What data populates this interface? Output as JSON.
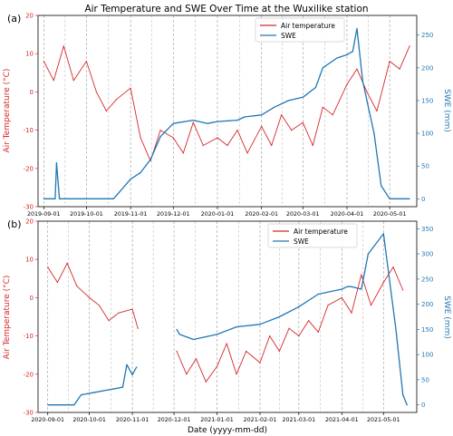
{
  "title": "Air Temperature and SWE Over Time at the Wuxilike station",
  "xlabel": "Date (yyyy-mm-dd)",
  "colors": {
    "air": "#d62728",
    "swe": "#1f77b4"
  },
  "chart_data": [
    {
      "type": "line",
      "panel_label": "(a)",
      "ylabel_left": "Air Temperature (°C)",
      "ylabel_right": "SWE (mm)",
      "legend": [
        "Air temperature",
        "SWE"
      ],
      "legend_loc": "top-center",
      "grid": "vertical dashed lines",
      "x_range": [
        "2019-08-28",
        "2020-05-20"
      ],
      "x_ticks": [
        "2019-09-01",
        "2019-10-01",
        "2019-11-01",
        "2019-12-01",
        "2020-01-01",
        "2020-02-01",
        "2020-03-01",
        "2020-04-01",
        "2020-05-01"
      ],
      "ylim_left": [
        -30,
        20
      ],
      "yticks_left": [
        -30,
        -20,
        -10,
        0,
        10,
        20
      ],
      "ylim_right": [
        -12,
        280
      ],
      "yticks_right": [
        0,
        50,
        100,
        150,
        200,
        250
      ],
      "series": [
        {
          "name": "Air temperature",
          "axis": "left",
          "dates": [
            "2019-09-01",
            "2019-09-08",
            "2019-09-15",
            "2019-09-22",
            "2019-10-01",
            "2019-10-08",
            "2019-10-15",
            "2019-10-22",
            "2019-11-01",
            "2019-11-08",
            "2019-11-15",
            "2019-11-22",
            "2019-12-01",
            "2019-12-08",
            "2019-12-15",
            "2019-12-22",
            "2020-01-01",
            "2020-01-08",
            "2020-01-15",
            "2020-01-22",
            "2020-02-01",
            "2020-02-08",
            "2020-02-15",
            "2020-02-22",
            "2020-03-01",
            "2020-03-08",
            "2020-03-15",
            "2020-03-22",
            "2020-04-01",
            "2020-04-08",
            "2020-04-15",
            "2020-04-22",
            "2020-05-01",
            "2020-05-08",
            "2020-05-15"
          ],
          "values": [
            8,
            3,
            12,
            3,
            8,
            0,
            -5,
            -2,
            1,
            -12,
            -18,
            -10,
            -12,
            -16,
            -8,
            -14,
            -12,
            -14,
            -10,
            -16,
            -9,
            -14,
            -6,
            -10,
            -8,
            -14,
            -4,
            -6,
            2,
            6,
            0,
            -5,
            8,
            6,
            12
          ]
        },
        {
          "name": "SWE",
          "axis": "right",
          "dates": [
            "2019-09-01",
            "2019-09-09",
            "2019-09-10",
            "2019-09-12",
            "2019-10-01",
            "2019-10-20",
            "2019-11-01",
            "2019-11-08",
            "2019-11-15",
            "2019-11-22",
            "2019-12-01",
            "2019-12-15",
            "2019-12-25",
            "2020-01-01",
            "2020-01-15",
            "2020-01-20",
            "2020-02-01",
            "2020-02-10",
            "2020-02-20",
            "2020-03-01",
            "2020-03-10",
            "2020-03-15",
            "2020-03-25",
            "2020-04-01",
            "2020-04-05",
            "2020-04-08",
            "2020-04-12",
            "2020-04-15",
            "2020-04-20",
            "2020-04-25",
            "2020-05-01",
            "2020-05-10",
            "2020-05-15"
          ],
          "values": [
            0,
            0,
            55,
            0,
            0,
            0,
            30,
            40,
            60,
            95,
            115,
            120,
            115,
            118,
            120,
            125,
            128,
            140,
            150,
            155,
            170,
            200,
            215,
            220,
            225,
            260,
            180,
            150,
            100,
            20,
            0,
            0,
            0
          ]
        }
      ]
    },
    {
      "type": "line",
      "panel_label": "(b)",
      "ylabel_left": "Air Temperature (°C)",
      "ylabel_right": "SWE (mm)",
      "legend": [
        "Air temperature",
        "SWE"
      ],
      "legend_loc": "top-center",
      "grid": "vertical dashed lines",
      "x_range": [
        "2020-08-25",
        "2021-05-25"
      ],
      "x_ticks": [
        "2020-09-01",
        "2020-10-01",
        "2020-11-01",
        "2020-12-01",
        "2021-01-01",
        "2021-02-01",
        "2021-03-01",
        "2021-04-01",
        "2021-05-01"
      ],
      "ylim_left": [
        -30,
        20
      ],
      "yticks_left": [
        -30,
        -20,
        -10,
        0,
        10,
        20
      ],
      "ylim_right": [
        -15,
        365
      ],
      "yticks_right": [
        0,
        50,
        100,
        150,
        200,
        250,
        300,
        350
      ],
      "series": [
        {
          "name": "Air temperature",
          "axis": "left",
          "dates": [
            "2020-09-01",
            "2020-09-08",
            "2020-09-15",
            "2020-09-22",
            "2020-10-01",
            "2020-10-08",
            "2020-10-15",
            "2020-10-22",
            "2020-11-01",
            "2020-11-05",
            "2020-12-03",
            "2020-12-10",
            "2020-12-17",
            "2020-12-24",
            "2021-01-01",
            "2021-01-08",
            "2021-01-15",
            "2021-01-22",
            "2021-02-01",
            "2021-02-08",
            "2021-02-15",
            "2021-02-22",
            "2021-03-01",
            "2021-03-08",
            "2021-03-15",
            "2021-03-22",
            "2021-04-01",
            "2021-04-08",
            "2021-04-15",
            "2021-04-22",
            "2021-05-01",
            "2021-05-08",
            "2021-05-15"
          ],
          "values": [
            8,
            4,
            9,
            3,
            0,
            -2,
            -6,
            -4,
            -3,
            -8,
            -14,
            -20,
            -16,
            -22,
            -18,
            -12,
            -20,
            -14,
            -17,
            -10,
            -14,
            -8,
            -10,
            -6,
            -9,
            -2,
            0,
            -4,
            6,
            -2,
            4,
            8,
            2
          ]
        },
        {
          "name": "SWE",
          "axis": "right",
          "dates": [
            "2020-09-01",
            "2020-09-20",
            "2020-09-25",
            "2020-10-05",
            "2020-10-15",
            "2020-10-25",
            "2020-10-28",
            "2020-11-01",
            "2020-11-04",
            "2020-12-03",
            "2020-12-05",
            "2020-12-15",
            "2021-01-01",
            "2021-01-15",
            "2021-02-01",
            "2021-02-15",
            "2021-03-01",
            "2021-03-15",
            "2021-04-01",
            "2021-04-05",
            "2021-04-08",
            "2021-04-15",
            "2021-04-20",
            "2021-05-01",
            "2021-05-10",
            "2021-05-15",
            "2021-05-18"
          ],
          "values": [
            0,
            0,
            20,
            25,
            30,
            35,
            80,
            60,
            75,
            150,
            140,
            130,
            140,
            155,
            160,
            175,
            195,
            220,
            230,
            235,
            235,
            230,
            300,
            340,
            150,
            20,
            0
          ]
        }
      ]
    }
  ]
}
